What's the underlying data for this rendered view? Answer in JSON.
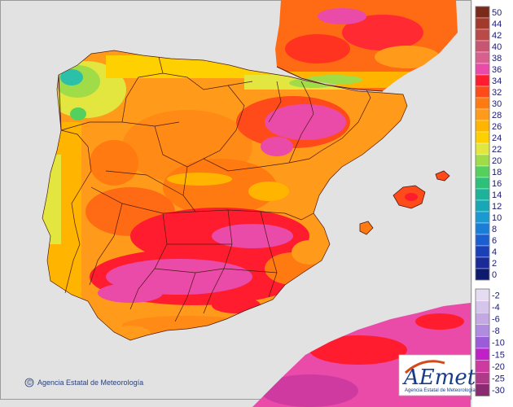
{
  "credit": {
    "symbol": "©",
    "text": "Agencia Estatal de Meteorología"
  },
  "logo": {
    "wordmark": "AEmet",
    "subtitle": "Agencia Estatal de Meteorología"
  },
  "legend": {
    "positive": [
      {
        "label": "50",
        "color": "#7a2a1a"
      },
      {
        "label": "44",
        "color": "#a33a2c"
      },
      {
        "label": "42",
        "color": "#b94a48"
      },
      {
        "label": "40",
        "color": "#c85572"
      },
      {
        "label": "38",
        "color": "#d8608e"
      },
      {
        "label": "36",
        "color": "#ea4aa8"
      },
      {
        "label": "34",
        "color": "#ff1c2e"
      },
      {
        "label": "32",
        "color": "#ff4a1a"
      },
      {
        "label": "30",
        "color": "#ff7a10"
      },
      {
        "label": "28",
        "color": "#ff9a1a"
      },
      {
        "label": "26",
        "color": "#ffb400"
      },
      {
        "label": "24",
        "color": "#ffd000"
      },
      {
        "label": "22",
        "color": "#e4e640"
      },
      {
        "label": "20",
        "color": "#a0dc48"
      },
      {
        "label": "18",
        "color": "#56d05c"
      },
      {
        "label": "16",
        "color": "#2cc078"
      },
      {
        "label": "14",
        "color": "#1db39a"
      },
      {
        "label": "12",
        "color": "#16a8b4"
      },
      {
        "label": "10",
        "color": "#1a9ad0"
      },
      {
        "label": "8",
        "color": "#1a7ed8"
      },
      {
        "label": "6",
        "color": "#1a5ed0"
      },
      {
        "label": "4",
        "color": "#1a40b8"
      },
      {
        "label": "2",
        "color": "#1a2a98"
      },
      {
        "label": "0",
        "color": "#0d1a6e"
      }
    ],
    "negative": [
      {
        "label": "-2",
        "color": "#e6dcf2"
      },
      {
        "label": "-4",
        "color": "#d6c4ec"
      },
      {
        "label": "-6",
        "color": "#c4a8e4"
      },
      {
        "label": "-8",
        "color": "#b08ce0"
      },
      {
        "label": "-10",
        "color": "#9a5cd8"
      },
      {
        "label": "-15",
        "color": "#c020c8"
      },
      {
        "label": "-20",
        "color": "#ce3aa0"
      },
      {
        "label": "-25",
        "color": "#b03a8a"
      },
      {
        "label": "-30",
        "color": "#8a2a70"
      }
    ]
  },
  "colors": {
    "sea": "#e2e2e2",
    "land_base": "#ff9a1a",
    "land_hot": "#ff4a1a",
    "land_hottest": "#ff1c2e",
    "land_extreme": "#ea4aa8",
    "land_mild": "#ffb400",
    "land_cool": "#e4e640",
    "land_cold": "#56d05c",
    "land_coldest": "#2cc0a8",
    "borders": "#4a1a10"
  }
}
